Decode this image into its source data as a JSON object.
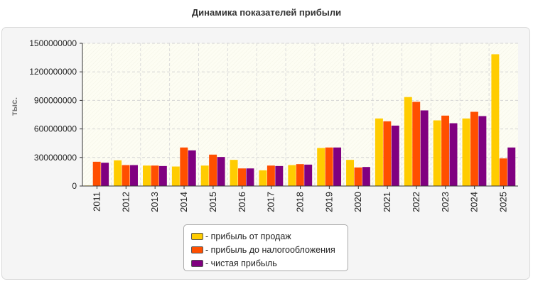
{
  "chart_data": {
    "type": "bar",
    "title": "Динамика показателей прибыли",
    "ylabel": "тыс.",
    "xlabel": "",
    "categories": [
      "2011",
      "2012",
      "2013",
      "2014",
      "2015",
      "2016",
      "2017",
      "2018",
      "2019",
      "2020",
      "2021",
      "2022",
      "2023",
      "2024",
      "2025"
    ],
    "ylim": [
      0,
      1500000000
    ],
    "yticks": [
      "0",
      "300000000",
      "600000000",
      "900000000",
      "1200000000",
      "1500000000"
    ],
    "grid": true,
    "legend_position": "bottom-center",
    "series": [
      {
        "name": "- прибыль от продаж",
        "color": "#ffcc00",
        "values": [
          5000000,
          270000000,
          215000000,
          205000000,
          215000000,
          275000000,
          165000000,
          220000000,
          400000000,
          275000000,
          710000000,
          935000000,
          690000000,
          710000000,
          1385000000
        ]
      },
      {
        "name": "- прибыль до налогообложения",
        "color": "#ff4f00",
        "values": [
          255000000,
          220000000,
          215000000,
          405000000,
          330000000,
          185000000,
          215000000,
          230000000,
          405000000,
          195000000,
          680000000,
          885000000,
          740000000,
          780000000,
          290000000
        ]
      },
      {
        "name": "- чистая прибыль",
        "color": "#800080",
        "values": [
          245000000,
          220000000,
          210000000,
          375000000,
          305000000,
          185000000,
          210000000,
          225000000,
          405000000,
          200000000,
          635000000,
          795000000,
          660000000,
          735000000,
          405000000
        ]
      }
    ]
  }
}
